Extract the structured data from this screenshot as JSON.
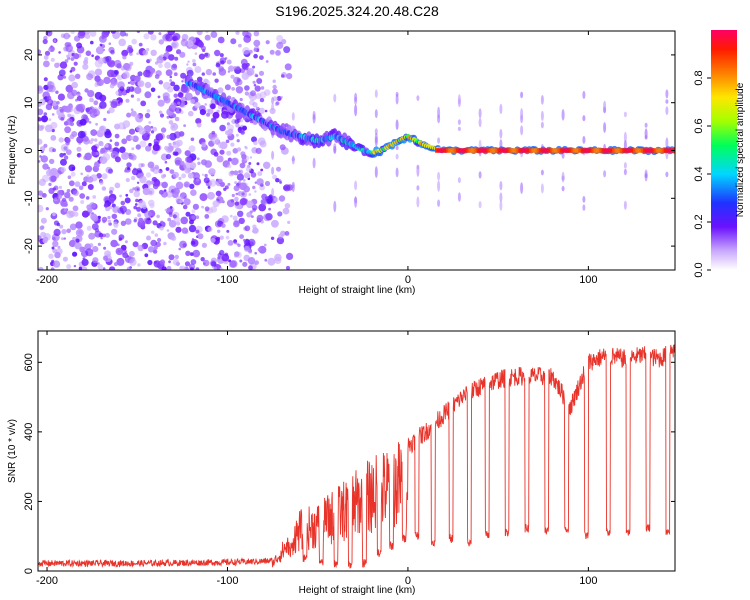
{
  "title": "S196.2025.324.20.48.C28",
  "chart_data": [
    {
      "type": "heatmap",
      "xlabel": "Height of straight line (km)",
      "ylabel": "Frequency (Hz)",
      "xlim": [
        -205,
        148
      ],
      "ylim": [
        -25,
        25
      ],
      "xticks": [
        -200,
        -100,
        0,
        100
      ],
      "yticks": [
        -20,
        -10,
        0,
        10,
        20
      ],
      "colorbar": {
        "label": "Normalized spectral amplitude",
        "range": [
          0,
          1
        ],
        "ticks": [
          0.0,
          0.2,
          0.4,
          0.6,
          0.8
        ]
      },
      "ridge": {
        "x": [
          -120,
          -110,
          -100,
          -90,
          -80,
          -70,
          -60,
          -50,
          -40,
          -30,
          -25,
          -20,
          -15,
          -10,
          -5,
          0,
          5,
          10,
          20,
          40,
          60,
          80,
          100,
          120,
          148
        ],
        "frequency": [
          14,
          12,
          10,
          8,
          6,
          4,
          3,
          2,
          3,
          1,
          0,
          -0.5,
          0,
          1,
          2,
          3,
          2,
          1,
          0,
          0,
          0,
          0,
          0,
          0,
          0
        ]
      }
    },
    {
      "type": "line",
      "xlabel": "Height of straight line (km)",
      "ylabel": "SNR (10 * v/v)",
      "xlim": [
        -205,
        148
      ],
      "ylim": [
        0,
        690
      ],
      "xticks": [
        -200,
        -100,
        0,
        100
      ],
      "yticks": [
        0,
        200,
        400,
        600
      ],
      "color": "#e8332a",
      "envelope": {
        "x": [
          -205,
          -150,
          -100,
          -80,
          -75,
          -60,
          -50,
          -40,
          -30,
          -20,
          -10,
          0,
          10,
          20,
          30,
          40,
          50,
          60,
          70,
          80,
          90,
          100,
          110,
          120,
          130,
          140,
          148
        ],
        "snr": [
          22,
          22,
          25,
          28,
          30,
          160,
          180,
          220,
          260,
          300,
          330,
          360,
          400,
          450,
          500,
          530,
          550,
          560,
          560,
          560,
          470,
          600,
          620,
          610,
          620,
          610,
          640
        ]
      },
      "dips": {
        "x": [
          -65,
          -57,
          -48,
          -40,
          -32,
          -24,
          -16,
          -9,
          -2,
          5,
          14,
          24,
          34,
          44,
          55,
          66,
          77,
          88,
          99,
          111,
          122,
          133,
          144
        ],
        "snr": [
          60,
          20,
          15,
          10,
          5,
          10,
          40,
          60,
          80,
          90,
          70,
          80,
          70,
          90,
          100,
          110,
          100,
          110,
          90,
          100,
          100,
          110,
          100
        ]
      }
    }
  ]
}
